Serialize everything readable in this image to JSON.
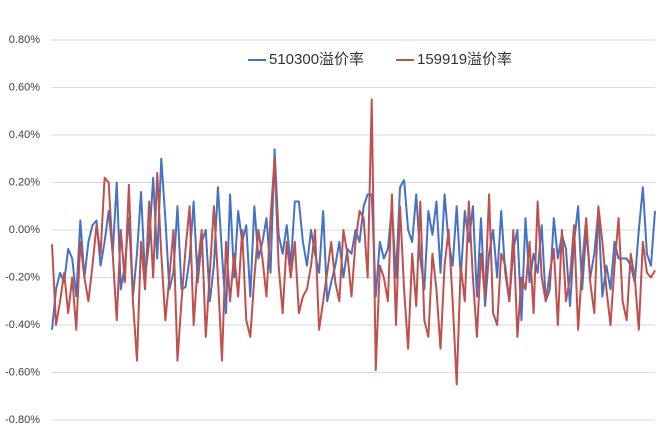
{
  "chart_data": {
    "type": "line",
    "ylim": [
      -0.8,
      0.8
    ],
    "yticks": [
      {
        "value": -0.8,
        "label": "-0.80%"
      },
      {
        "value": -0.6,
        "label": "-0.60%"
      },
      {
        "value": -0.4,
        "label": "-0.40%"
      },
      {
        "value": -0.2,
        "label": "-0.20%"
      },
      {
        "value": 0,
        "label": "0.00%"
      },
      {
        "value": 0.2,
        "label": "0.20%"
      },
      {
        "value": 0.4,
        "label": "0.40%"
      },
      {
        "value": 0.6,
        "label": "0.60%"
      },
      {
        "value": 0.8,
        "label": "0.80%"
      }
    ],
    "grid": true,
    "legend": "top",
    "series": [
      {
        "name": "510300溢价率",
        "color": "#4472c4",
        "values": [
          -0.42,
          -0.25,
          -0.18,
          -0.22,
          -0.08,
          -0.12,
          -0.28,
          0.04,
          -0.2,
          -0.05,
          0.02,
          0.04,
          -0.15,
          -0.05,
          0.08,
          -0.1,
          0.2,
          -0.25,
          -0.15,
          0.05,
          -0.28,
          -0.1,
          0.16,
          -0.2,
          -0.05,
          0.22,
          -0.12,
          0.3,
          0.05,
          -0.25,
          -0.18,
          0.1,
          -0.25,
          -0.24,
          -0.12,
          0.12,
          -0.22,
          -0.05,
          0.0,
          -0.3,
          -0.15,
          0.18,
          -0.1,
          -0.35,
          0.15,
          -0.2,
          0.08,
          -0.05,
          0.02,
          -0.28,
          0.1,
          -0.12,
          -0.05,
          0.05,
          -0.18,
          0.34,
          -0.02,
          -0.1,
          0.02,
          -0.15,
          0.12,
          0.12,
          -0.05,
          -0.15,
          0.0,
          -0.1,
          -0.18,
          0.08,
          -0.3,
          -0.22,
          -0.15,
          -0.05,
          -0.2,
          -0.08,
          -0.1,
          0.0,
          -0.05,
          0.1,
          0.15,
          0.15,
          -0.28,
          -0.05,
          -0.12,
          -0.08,
          0.1,
          -0.2,
          0.18,
          0.21,
          0.0,
          -0.05,
          0.15,
          -0.12,
          -0.25,
          0.08,
          -0.02,
          0.12,
          -0.18,
          0.15,
          -0.05,
          -0.15,
          0.1,
          -0.2,
          0.08,
          -0.05,
          0.1,
          -0.28,
          0.05,
          -0.32,
          -0.1,
          0.0,
          -0.2,
          0.08,
          -0.18,
          -0.3,
          -0.08,
          0.0,
          -0.38,
          0.05,
          -0.22,
          -0.1,
          -0.18,
          0.02,
          -0.3,
          -0.25,
          0.05,
          -0.12,
          -0.02,
          -0.08,
          -0.32,
          -0.05,
          0.1,
          -0.25,
          0.0,
          -0.2,
          -0.1,
          0.08,
          -0.28,
          -0.15,
          -0.25,
          -0.05,
          -0.12,
          -0.12,
          -0.12,
          -0.15,
          -0.22,
          0.0,
          0.18,
          -0.1,
          -0.15,
          0.08
        ]
      },
      {
        "name": "159919溢价率",
        "color": "#c0504d",
        "values": [
          -0.06,
          -0.4,
          -0.3,
          -0.18,
          -0.35,
          -0.2,
          -0.42,
          -0.05,
          -0.2,
          -0.3,
          -0.15,
          0.02,
          -0.1,
          0.22,
          0.2,
          -0.1,
          -0.38,
          0.0,
          -0.22,
          0.19,
          -0.3,
          -0.55,
          -0.05,
          -0.25,
          0.12,
          -0.2,
          0.24,
          -0.1,
          -0.38,
          -0.2,
          0.0,
          -0.55,
          -0.3,
          -0.08,
          0.1,
          -0.4,
          -0.15,
          0.0,
          -0.45,
          -0.18,
          0.1,
          -0.2,
          -0.55,
          -0.05,
          -0.3,
          -0.1,
          -0.28,
          0.0,
          -0.38,
          -0.45,
          -0.2,
          0.0,
          -0.12,
          -0.28,
          0.05,
          0.3,
          -0.15,
          -0.35,
          -0.05,
          -0.2,
          -0.05,
          -0.35,
          -0.28,
          -0.25,
          -0.15,
          0.0,
          -0.42,
          -0.3,
          -0.18,
          -0.05,
          -0.22,
          -0.3,
          0.0,
          -0.1,
          -0.28,
          -0.05,
          0.08,
          0.05,
          -0.2,
          0.55,
          -0.59,
          -0.15,
          -0.2,
          -0.3,
          0.15,
          -0.4,
          0.1,
          -0.25,
          -0.5,
          -0.1,
          -0.32,
          0.12,
          -0.38,
          -0.45,
          -0.1,
          -0.25,
          -0.5,
          -0.15,
          0.0,
          -0.3,
          -0.65,
          -0.15,
          -0.3,
          0.12,
          -0.2,
          -0.45,
          -0.1,
          -0.28,
          0.15,
          -0.35,
          -0.4,
          -0.1,
          -0.15,
          -0.3,
          0.0,
          -0.45,
          -0.2,
          -0.25,
          -0.05,
          -0.35,
          0.12,
          -0.2,
          -0.3,
          -0.18,
          -0.08,
          -0.4,
          0.0,
          -0.3,
          -0.2,
          0.02,
          -0.42,
          -0.15,
          0.05,
          -0.22,
          -0.35,
          0.1,
          -0.05,
          -0.25,
          -0.4,
          -0.15,
          0.05,
          -0.3,
          -0.38,
          -0.1,
          -0.2,
          -0.42,
          -0.05,
          -0.18,
          -0.2,
          -0.17
        ]
      }
    ]
  }
}
